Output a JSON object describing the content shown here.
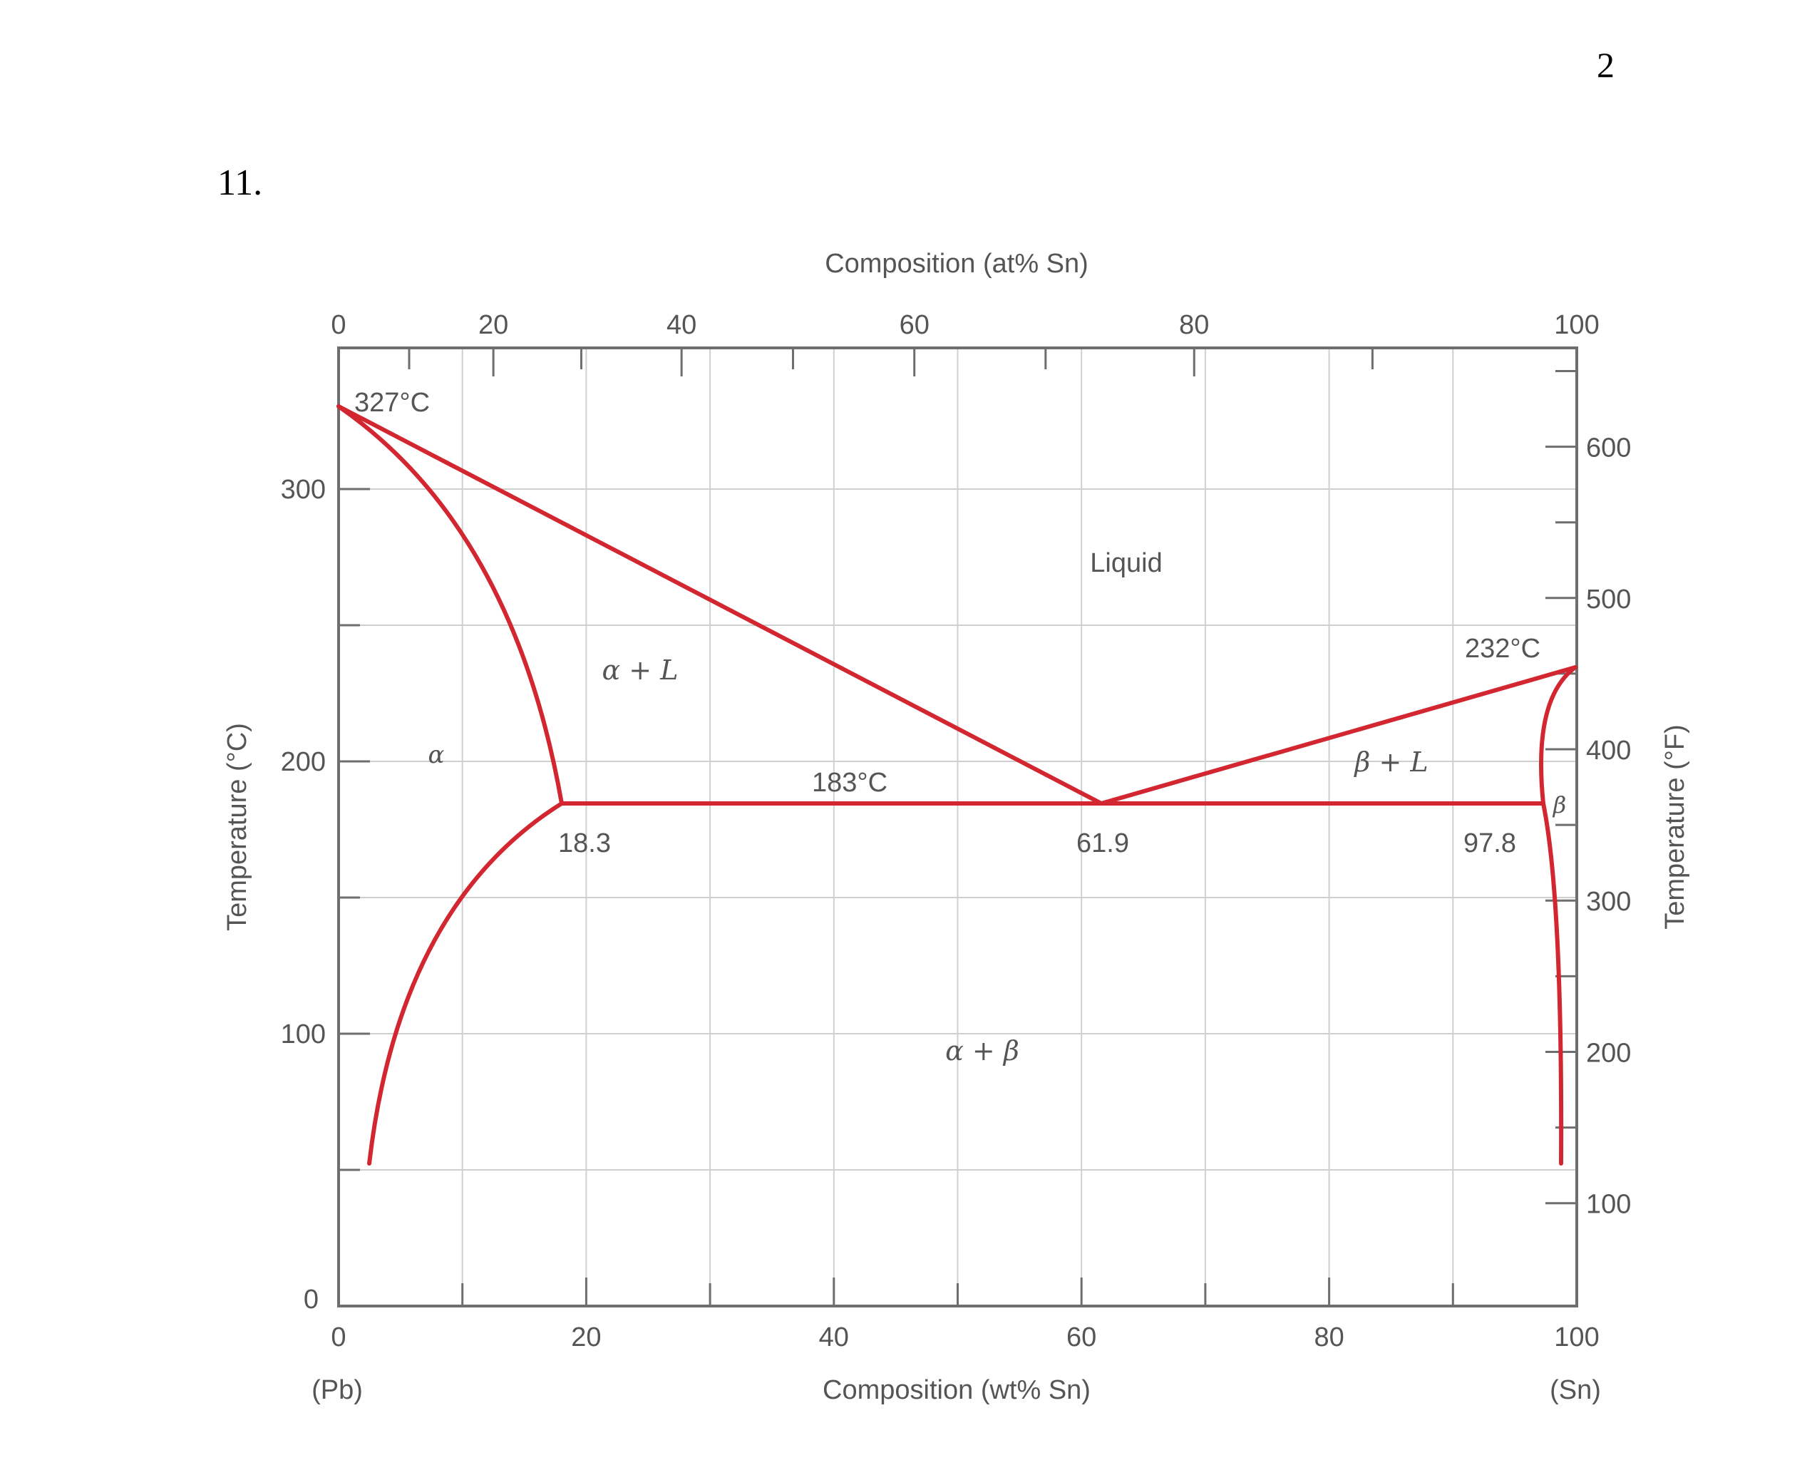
{
  "page_number": "2",
  "question_number": "11.",
  "colors": {
    "boundary": "#d22630",
    "frame": "#6e6e6e",
    "grid": "#cfcfcf",
    "text": "#555555"
  },
  "chart_data": {
    "type": "line",
    "title": "",
    "top_axis_label": "Composition (at% Sn)",
    "bottom_axis_label": "Composition (wt% Sn)",
    "left_axis_label": "Temperature (°C)",
    "right_axis_label": "Temperature (°F)",
    "x_range": [
      0,
      100
    ],
    "y_range": [
      0,
      340
    ],
    "x_ticks_wt": [
      "0",
      "20",
      "40",
      "60",
      "80",
      "100"
    ],
    "x_ticks_at": [
      "0",
      "20",
      "40",
      "60",
      "80",
      "100"
    ],
    "at_tick_wt_positions": [
      0,
      12.5,
      27.7,
      46.5,
      69.1,
      100
    ],
    "y_ticks_c": [
      "0",
      "100",
      "200",
      "300"
    ],
    "y_ticks_f": [
      "100",
      "200",
      "300",
      "400",
      "500",
      "600"
    ],
    "y_ticks_f_values": [
      100,
      200,
      300,
      400,
      500,
      600
    ],
    "pb_end_label": "(Pb)",
    "sn_end_label": "(Sn)",
    "grid": true,
    "region_labels": {
      "liquid": "Liquid",
      "alpha": "α",
      "alpha_plus_l": "α + L",
      "beta_plus_l": "β + L",
      "beta": "β",
      "alpha_plus_beta": "α + β"
    },
    "annotations": {
      "pb_melting": "327°C",
      "sn_melting": "232°C",
      "eutectic_temp": "183°C",
      "alpha_max": "18.3",
      "eutectic_comp": "61.9",
      "beta_max": "97.8"
    },
    "series": [
      {
        "key": "liquidus_pb",
        "points": [
          [
            0,
            327
          ],
          [
            61.9,
            183
          ]
        ]
      },
      {
        "key": "liquidus_sn",
        "points": [
          [
            61.9,
            183
          ],
          [
            100,
            232
          ]
        ]
      },
      {
        "key": "solidus_alpha",
        "points": [
          [
            0,
            327
          ],
          [
            18.3,
            183
          ]
        ]
      },
      {
        "key": "solvus_alpha",
        "points": [
          [
            18.3,
            183
          ],
          [
            2.5,
            52
          ]
        ]
      },
      {
        "key": "eutectic_line",
        "points": [
          [
            18.3,
            183
          ],
          [
            97.8,
            183
          ]
        ]
      },
      {
        "key": "solidus_beta",
        "points": [
          [
            100,
            232
          ],
          [
            97.8,
            183
          ]
        ]
      },
      {
        "key": "solvus_beta",
        "points": [
          [
            97.8,
            183
          ],
          [
            99,
            52
          ]
        ]
      }
    ]
  }
}
